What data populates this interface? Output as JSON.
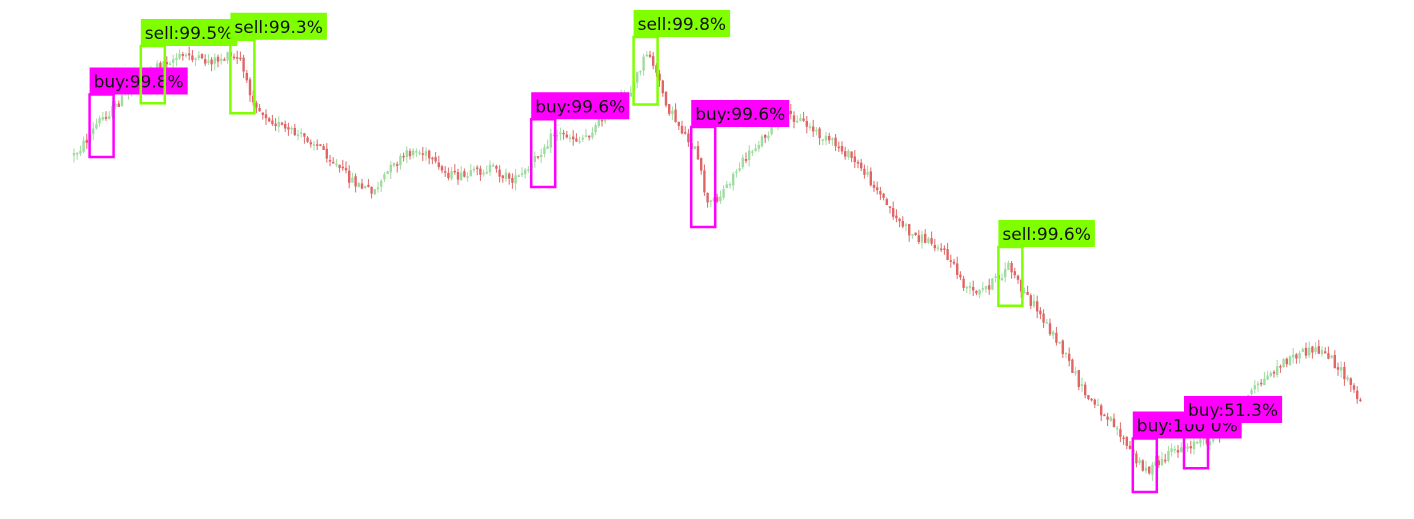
{
  "colors": {
    "background": "#ffffff",
    "up_candle": "#9fdc9f",
    "down_candle": "#e06666",
    "buy": "#ff00ff",
    "sell": "#7fff00",
    "label_text": "#111111"
  },
  "chart_data": {
    "type": "candlestick",
    "title": "",
    "xlabel": "",
    "ylabel": "",
    "grid": false,
    "legend": "none",
    "price_path": [
      [
        0,
        155
      ],
      [
        4,
        140
      ],
      [
        8,
        120
      ],
      [
        12,
        110
      ],
      [
        16,
        95
      ],
      [
        20,
        85
      ],
      [
        24,
        70
      ],
      [
        28,
        62
      ],
      [
        32,
        58
      ],
      [
        36,
        55
      ],
      [
        40,
        62
      ],
      [
        44,
        60
      ],
      [
        48,
        57
      ],
      [
        52,
        60
      ],
      [
        54,
        85
      ],
      [
        58,
        110
      ],
      [
        62,
        120
      ],
      [
        66,
        130
      ],
      [
        70,
        135
      ],
      [
        74,
        140
      ],
      [
        78,
        150
      ],
      [
        82,
        165
      ],
      [
        86,
        178
      ],
      [
        90,
        188
      ],
      [
        94,
        190
      ],
      [
        98,
        172
      ],
      [
        102,
        160
      ],
      [
        106,
        150
      ],
      [
        110,
        155
      ],
      [
        114,
        170
      ],
      [
        118,
        175
      ],
      [
        122,
        178
      ],
      [
        126,
        172
      ],
      [
        130,
        168
      ],
      [
        134,
        175
      ],
      [
        138,
        180
      ],
      [
        142,
        170
      ],
      [
        146,
        150
      ],
      [
        150,
        133
      ],
      [
        154,
        135
      ],
      [
        158,
        140
      ],
      [
        162,
        130
      ],
      [
        166,
        115
      ],
      [
        170,
        105
      ],
      [
        174,
        90
      ],
      [
        178,
        60
      ],
      [
        180,
        55
      ],
      [
        182,
        75
      ],
      [
        186,
        110
      ],
      [
        190,
        130
      ],
      [
        194,
        150
      ],
      [
        196,
        175
      ],
      [
        198,
        205
      ],
      [
        202,
        195
      ],
      [
        206,
        175
      ],
      [
        210,
        158
      ],
      [
        214,
        142
      ],
      [
        218,
        128
      ],
      [
        222,
        115
      ],
      [
        226,
        118
      ],
      [
        230,
        128
      ],
      [
        234,
        138
      ],
      [
        238,
        145
      ],
      [
        242,
        155
      ],
      [
        246,
        168
      ],
      [
        250,
        185
      ],
      [
        254,
        205
      ],
      [
        258,
        222
      ],
      [
        262,
        235
      ],
      [
        266,
        240
      ],
      [
        270,
        245
      ],
      [
        274,
        262
      ],
      [
        278,
        285
      ],
      [
        282,
        295
      ],
      [
        286,
        285
      ],
      [
        290,
        275
      ],
      [
        292,
        265
      ],
      [
        296,
        290
      ],
      [
        300,
        305
      ],
      [
        304,
        325
      ],
      [
        308,
        345
      ],
      [
        312,
        370
      ],
      [
        316,
        395
      ],
      [
        320,
        408
      ],
      [
        324,
        418
      ],
      [
        328,
        440
      ],
      [
        332,
        462
      ],
      [
        336,
        470
      ],
      [
        340,
        462
      ],
      [
        344,
        450
      ],
      [
        348,
        445
      ],
      [
        352,
        442
      ],
      [
        356,
        438
      ],
      [
        360,
        430
      ],
      [
        364,
        410
      ],
      [
        368,
        392
      ],
      [
        372,
        380
      ],
      [
        376,
        368
      ],
      [
        380,
        358
      ],
      [
        384,
        353
      ],
      [
        388,
        350
      ],
      [
        392,
        355
      ],
      [
        396,
        372
      ],
      [
        400,
        390
      ],
      [
        402,
        405
      ]
    ],
    "signals": [
      {
        "type": "buy",
        "label": "buy:99.8%",
        "index": 8
      },
      {
        "type": "sell",
        "label": "sell:99.5%",
        "index": 24
      },
      {
        "type": "sell",
        "label": "sell:99.3%",
        "index": 52
      },
      {
        "type": "buy",
        "label": "buy:99.6%",
        "index": 146
      },
      {
        "type": "sell",
        "label": "sell:99.8%",
        "index": 178
      },
      {
        "type": "buy",
        "label": "buy:99.6%",
        "index": 196
      },
      {
        "type": "sell",
        "label": "sell:99.6%",
        "index": 292
      },
      {
        "type": "buy",
        "label": "buy:100.0%",
        "index": 334
      },
      {
        "type": "buy",
        "label": "buy:51.3%",
        "index": 350
      }
    ]
  }
}
